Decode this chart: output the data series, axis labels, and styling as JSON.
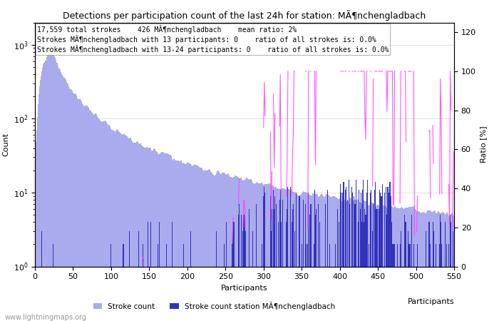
{
  "title": "Detections per participation count of the last 24h for station: MÃ¶nchengladbach",
  "annotation_lines": [
    "17,559 total strokes    426 MÃ¶nchengladbach    mean ratio: 2%",
    "Strokes MÃ¶nchengladbach with 13 participants: 0    ratio of all strokes is: 0.0%",
    "Strokes MÃ¶nchengladbach with 13-24 participants: 0    ratio of all strokes is: 0.0%"
  ],
  "xlabel": "Participants",
  "ylabel_left": "Count",
  "ylabel_right": "Ratio [%]",
  "xlim": [
    0,
    550
  ],
  "ylim_right": [
    0,
    125
  ],
  "bar_color_total": "#aaaaee",
  "bar_color_station": "#3333bb",
  "line_color_ratio": "#ff44ff",
  "watermark": "www.lightningmaps.org",
  "total_strokes": 17559,
  "station_strokes": 426
}
